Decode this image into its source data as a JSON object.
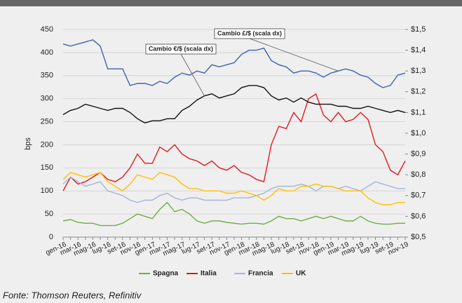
{
  "chart_data": {
    "type": "line",
    "y_label": "bps",
    "source": "Fonte: Thomson Reuters, Refinitiv",
    "categories": [
      "gen-16",
      null,
      "mar-16",
      null,
      "mag-16",
      null,
      "lug-16",
      null,
      "set-16",
      null,
      "nov-16",
      null,
      "gen-17",
      null,
      "mar-17",
      null,
      "mag-17",
      null,
      "lug-17",
      null,
      "set-17",
      null,
      "nov-17",
      null,
      "gen-18",
      null,
      "mar-18",
      null,
      "mag-18",
      null,
      "lug-18",
      null,
      "set-18",
      null,
      "nov-18",
      null,
      "gen-19",
      null,
      "mar-19",
      null,
      "mag-19",
      null,
      "lug-19",
      null,
      "set-19",
      null,
      "nov-19"
    ],
    "ylim": [
      0,
      450
    ],
    "yticks": [
      0,
      50,
      100,
      150,
      200,
      250,
      300,
      350,
      400,
      450
    ],
    "y2lim": [
      0.5,
      1.5
    ],
    "y2ticks": [
      {
        "value": 0.5,
        "label": "$0,5"
      },
      {
        "value": 0.6,
        "label": "$0,6"
      },
      {
        "value": 0.7,
        "label": "$0,7"
      },
      {
        "value": 0.8,
        "label": "$0,8"
      },
      {
        "value": 0.9,
        "label": "$0,9"
      },
      {
        "value": 1.0,
        "label": "$1,0"
      },
      {
        "value": 1.1,
        "label": "$1,1"
      },
      {
        "value": 1.2,
        "label": "$1,2"
      },
      {
        "value": 1.3,
        "label": "$1,3"
      },
      {
        "value": 1.4,
        "label": "$1,4"
      },
      {
        "value": 1.5,
        "label": "$1,5"
      }
    ],
    "grid": true,
    "legend": "bottom",
    "series": [
      {
        "name": "Spagna",
        "color": "#70ad47",
        "values": [
          35,
          38,
          32,
          30,
          30,
          25,
          25,
          25,
          30,
          40,
          50,
          45,
          40,
          60,
          75,
          55,
          60,
          50,
          35,
          30,
          35,
          35,
          32,
          30,
          28,
          30,
          30,
          28,
          35,
          45,
          40,
          40,
          35,
          40,
          45,
          40,
          45,
          40,
          35,
          35,
          45,
          35,
          30,
          28,
          28,
          30,
          30
        ]
      },
      {
        "name": "Italia",
        "color": "#e0191f",
        "values": [
          100,
          130,
          115,
          120,
          130,
          140,
          125,
          120,
          130,
          150,
          180,
          160,
          160,
          195,
          185,
          200,
          180,
          170,
          165,
          155,
          165,
          150,
          145,
          155,
          140,
          135,
          125,
          120,
          200,
          240,
          235,
          270,
          250,
          300,
          310,
          265,
          250,
          270,
          250,
          255,
          270,
          255,
          200,
          185,
          145,
          135,
          165
        ]
      },
      {
        "name": "Francia",
        "color": "#9fb6da",
        "values": [
          115,
          130,
          120,
          110,
          115,
          120,
          100,
          95,
          90,
          80,
          75,
          80,
          80,
          90,
          95,
          85,
          80,
          85,
          85,
          80,
          80,
          80,
          80,
          85,
          85,
          85,
          90,
          95,
          105,
          110,
          110,
          110,
          115,
          110,
          100,
          110,
          110,
          105,
          110,
          105,
          100,
          110,
          120,
          115,
          110,
          105,
          105
        ]
      },
      {
        "name": "UK",
        "color": "#ffc000",
        "values": [
          125,
          140,
          135,
          130,
          135,
          140,
          120,
          110,
          100,
          115,
          135,
          130,
          125,
          140,
          135,
          130,
          115,
          105,
          105,
          100,
          100,
          100,
          95,
          95,
          100,
          95,
          90,
          80,
          90,
          105,
          100,
          100,
          110,
          110,
          115,
          110,
          110,
          105,
          100,
          100,
          100,
          85,
          75,
          70,
          70,
          75,
          75
        ]
      },
      {
        "name": "Cambio €/$ (scala dx)",
        "axis": "y2",
        "color": "#111111",
        "values": [
          1.09,
          1.11,
          1.12,
          1.14,
          1.13,
          1.12,
          1.11,
          1.12,
          1.12,
          1.1,
          1.07,
          1.05,
          1.06,
          1.06,
          1.07,
          1.07,
          1.11,
          1.13,
          1.16,
          1.18,
          1.19,
          1.17,
          1.18,
          1.19,
          1.22,
          1.23,
          1.23,
          1.22,
          1.18,
          1.16,
          1.17,
          1.15,
          1.17,
          1.15,
          1.14,
          1.14,
          1.14,
          1.13,
          1.13,
          1.12,
          1.12,
          1.13,
          1.12,
          1.11,
          1.1,
          1.11,
          1.1
        ]
      },
      {
        "name": "Cambio £/$ (scala dx)",
        "axis": "y2",
        "color": "#3c64ae",
        "values": [
          1.43,
          1.42,
          1.43,
          1.44,
          1.45,
          1.42,
          1.31,
          1.31,
          1.31,
          1.23,
          1.24,
          1.24,
          1.23,
          1.25,
          1.24,
          1.27,
          1.29,
          1.28,
          1.3,
          1.29,
          1.33,
          1.32,
          1.33,
          1.34,
          1.38,
          1.4,
          1.4,
          1.41,
          1.35,
          1.33,
          1.32,
          1.29,
          1.3,
          1.3,
          1.29,
          1.27,
          1.29,
          1.3,
          1.31,
          1.3,
          1.28,
          1.27,
          1.24,
          1.22,
          1.23,
          1.28,
          1.29
        ]
      }
    ]
  }
}
